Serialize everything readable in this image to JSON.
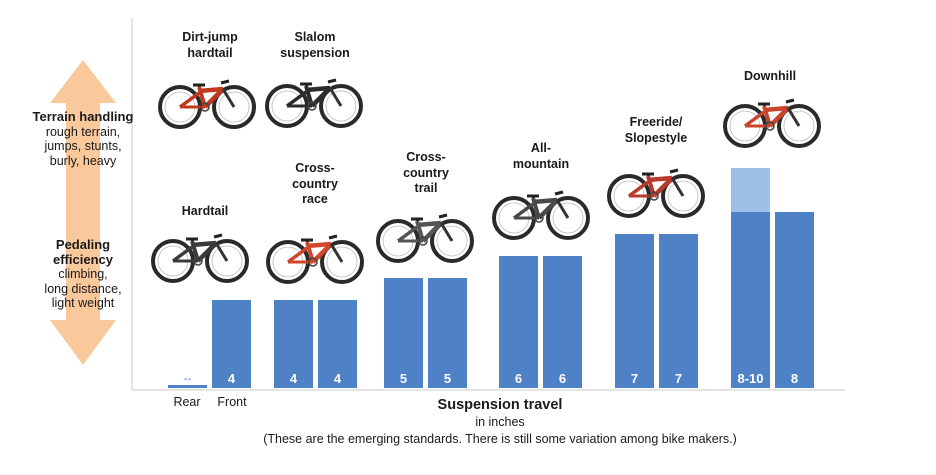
{
  "left_scale": {
    "terrain_heading": "Terrain handling",
    "terrain_desc": [
      "rough terrain,",
      "jumps, stunts,",
      "burly, heavy"
    ],
    "pedaling_heading": "Pedaling efficiency",
    "pedaling_desc": [
      "climbing,",
      "long distance,",
      "light weight"
    ],
    "arrow_color": "#f9c89b"
  },
  "bike_icon_names": [
    "dirt-jump-bike-icon",
    "slalom-bike-icon",
    "hardtail-bike-icon",
    "cross-country-race-bike-icon",
    "cross-country-trail-bike-icon",
    "all-mountain-bike-icon",
    "freeride-bike-icon",
    "downhill-bike-icon"
  ],
  "category_labels": [
    {
      "id": "dirt-jump",
      "lines": [
        "Dirt-jump",
        "hardtail"
      ]
    },
    {
      "id": "slalom",
      "lines": [
        "Slalom",
        "suspension"
      ]
    },
    {
      "id": "hardtail",
      "lines": [
        "Hardtail"
      ]
    },
    {
      "id": "cross-country-race",
      "lines": [
        "Cross-",
        "country",
        "race"
      ]
    },
    {
      "id": "cross-country-trail",
      "lines": [
        "Cross-",
        "country",
        "trail"
      ]
    },
    {
      "id": "all-mountain",
      "lines": [
        "All-",
        "mountain"
      ]
    },
    {
      "id": "freeride",
      "lines": [
        "Freeride/",
        "Slopestyle"
      ]
    },
    {
      "id": "downhill",
      "lines": [
        "Downhill"
      ]
    }
  ],
  "chart_data": {
    "type": "bar",
    "title": "",
    "xlabel": "Suspension travel",
    "xlabel_sub": "in inches",
    "note": "(These are the emerging standards. There is still some variation among bike makers.)",
    "ylim": [
      0,
      10
    ],
    "grid": false,
    "bar_color": "#4f81c7",
    "range_color": "#9ec0e8",
    "groups": [
      {
        "name": "Hardtail",
        "bars": [
          {
            "label": "--",
            "value": 0,
            "tick": "Rear"
          },
          {
            "label": "4",
            "value": 4,
            "tick": "Front"
          }
        ]
      },
      {
        "name": "Cross-country race",
        "bars": [
          {
            "label": "4",
            "value": 4
          },
          {
            "label": "4",
            "value": 4
          }
        ]
      },
      {
        "name": "Cross-country trail",
        "bars": [
          {
            "label": "5",
            "value": 5
          },
          {
            "label": "5",
            "value": 5
          }
        ]
      },
      {
        "name": "All-mountain",
        "bars": [
          {
            "label": "6",
            "value": 6
          },
          {
            "label": "6",
            "value": 6
          }
        ]
      },
      {
        "name": "Freeride/Slopestyle",
        "bars": [
          {
            "label": "7",
            "value": 7
          },
          {
            "label": "7",
            "value": 7
          }
        ]
      },
      {
        "name": "Downhill",
        "bars": [
          {
            "label": "8-10",
            "value": 8,
            "range_max": 10
          },
          {
            "label": "8",
            "value": 8
          }
        ]
      }
    ]
  }
}
